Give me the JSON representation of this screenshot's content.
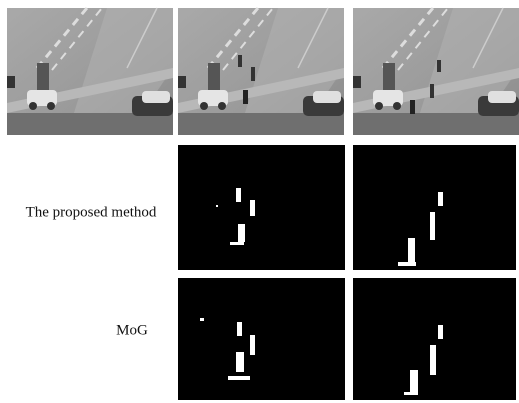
{
  "row_labels": [
    "The proposed method",
    "MoG"
  ]
}
